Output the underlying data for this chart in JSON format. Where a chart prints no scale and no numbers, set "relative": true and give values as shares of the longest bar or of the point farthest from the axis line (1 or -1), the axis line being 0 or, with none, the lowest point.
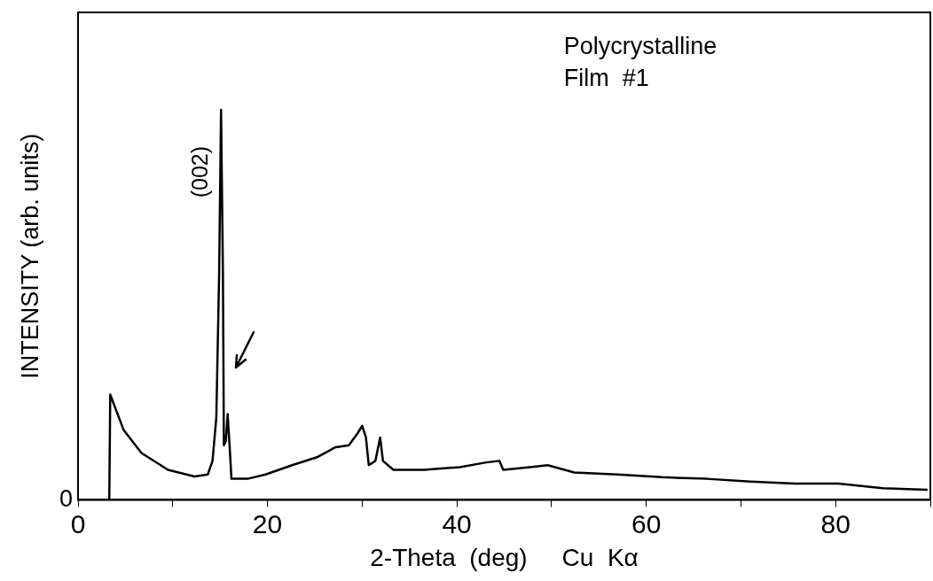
{
  "chart_data": {
    "type": "line",
    "relative": true,
    "xlabel": "2-Theta  (deg)     Cu  Kα",
    "ylabel": "INTENSITY (arb. units)",
    "xlim": [
      0,
      90
    ],
    "xticks": [
      0,
      {
        "value": 10,
        "label": null
      },
      20,
      {
        "value": 30,
        "label": null
      },
      40,
      {
        "value": 50,
        "label": null
      },
      60,
      {
        "value": 70,
        "label": null
      },
      80,
      {
        "value": 90,
        "label": null
      }
    ],
    "annotations": [
      "0",
      {
        "text": "(002)",
        "x": 15.1,
        "y": 1.0
      },
      "Polycrystalline",
      "Film  #1"
    ],
    "marker": "none",
    "legend": false,
    "grid": false,
    "series": [
      {
        "color": "#000000",
        "x": [
          3.3,
          3.4,
          4.8,
          6.7,
          9.5,
          12.3,
          13.7,
          14.2,
          14.6,
          14.9,
          15.1,
          15.3,
          15.4,
          15.6,
          15.8,
          16.0,
          16.2,
          17.9,
          19.8,
          22.6,
          25.3,
          27.2,
          28.6,
          29.5,
          30.0,
          30.4,
          30.7,
          31.4,
          31.9,
          32.2,
          33.3,
          36.5,
          40.3,
          43.1,
          44.5,
          44.9,
          47.7,
          49.6,
          52.4,
          57.0,
          61.7,
          66.4,
          71.0,
          75.7,
          80.3,
          85.0,
          89.7
        ],
        "values": [
          0,
          0.27,
          0.18,
          0.12,
          0.077,
          0.06,
          0.065,
          0.1,
          0.21,
          0.58,
          1.0,
          0.58,
          0.14,
          0.15,
          0.22,
          0.14,
          0.054,
          0.054,
          0.065,
          0.089,
          0.11,
          0.135,
          0.14,
          0.17,
          0.19,
          0.16,
          0.089,
          0.1,
          0.16,
          0.1,
          0.077,
          0.077,
          0.084,
          0.096,
          0.1,
          0.077,
          0.084,
          0.089,
          0.07,
          0.065,
          0.058,
          0.054,
          0.047,
          0.042,
          0.042,
          0.03,
          0.026
        ]
      }
    ]
  }
}
